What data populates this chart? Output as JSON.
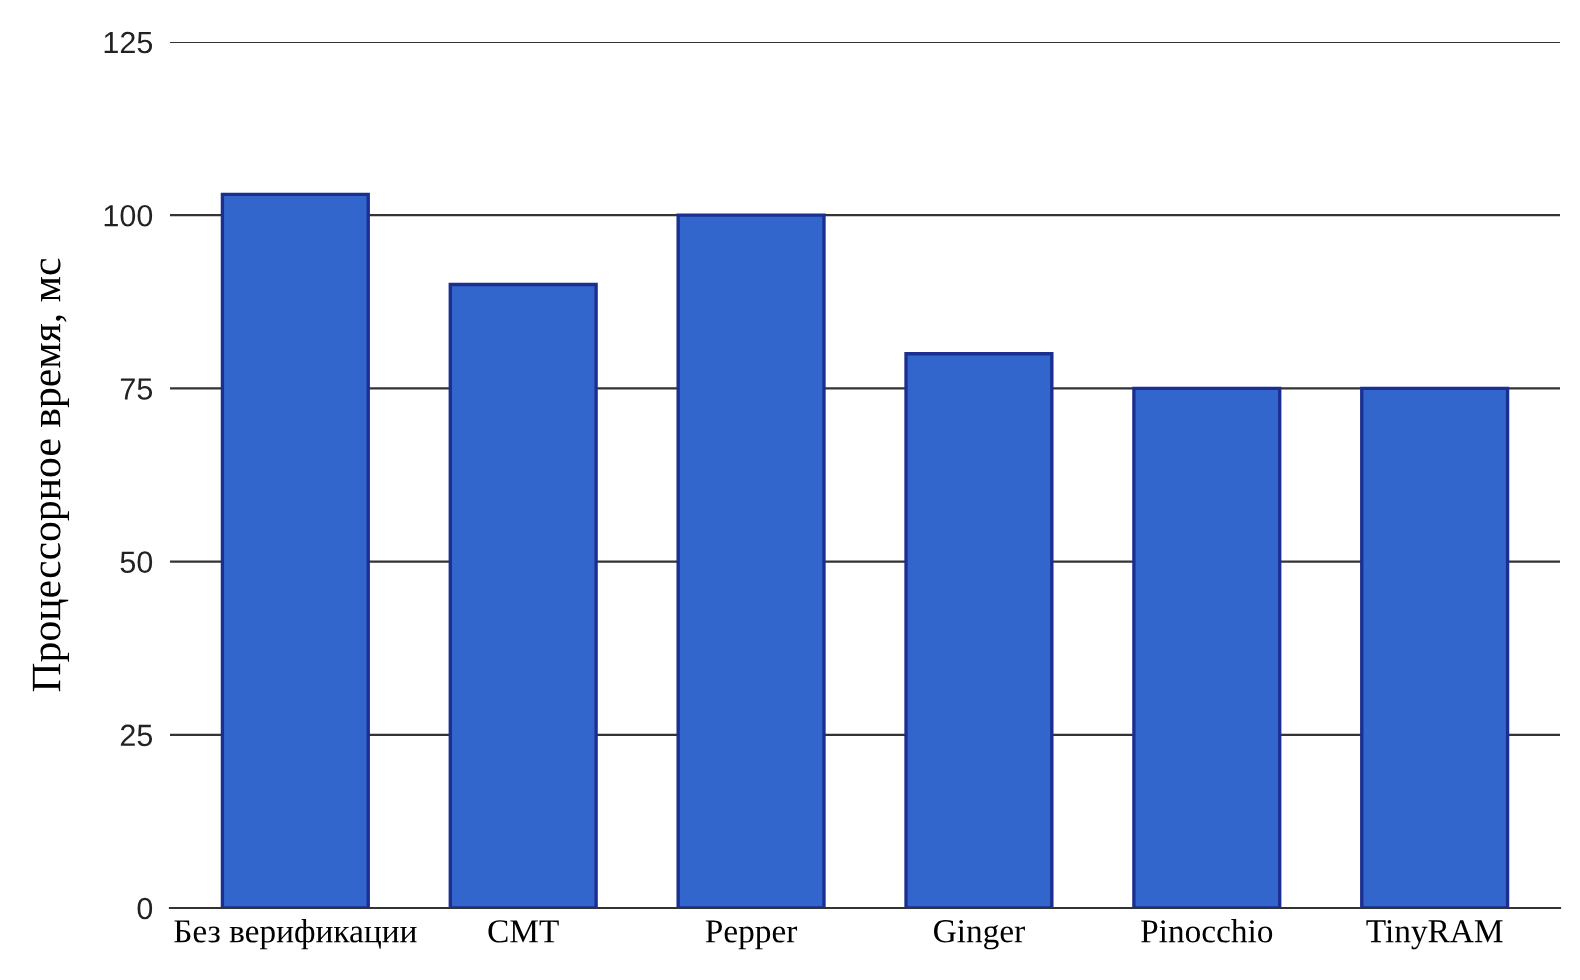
{
  "chart_data": {
    "type": "bar",
    "ylabel": "Процессорное время, мс",
    "categories": [
      "Без верификации",
      "CMT",
      "Pepper",
      "Ginger",
      "Pinocchio",
      "TinyRAM"
    ],
    "values": [
      103,
      90,
      100,
      80,
      75,
      75
    ],
    "color": "#3366cc",
    "ylim": [
      0,
      125
    ],
    "yticks": [
      0,
      25,
      50,
      75,
      100,
      125
    ],
    "grid": "y"
  }
}
